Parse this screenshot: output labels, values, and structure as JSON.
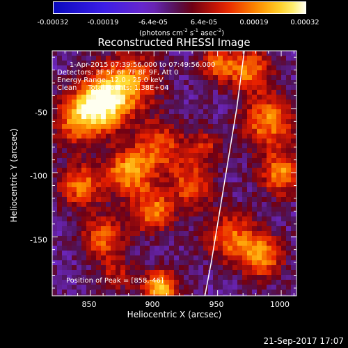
{
  "colorbar": {
    "tick_labels": [
      "-0.00032",
      "-0.00019",
      "-6.4e-05",
      "6.4e-05",
      "0.00019",
      "0.00032"
    ],
    "unit_main": "(photons cm",
    "unit_sup1": "-2",
    "unit_s": " s",
    "unit_sup2": "-1",
    "unit_asec": " asec",
    "unit_sup3": "-2",
    "unit_end": ")",
    "range": [
      -0.00032,
      0.00032
    ]
  },
  "chart_data": {
    "type": "heatmap",
    "title": "Reconstructed RHESSI Image",
    "xlabel": "Heliocentric X (arcsec)",
    "ylabel": "Heliocentric Y (arcsec)",
    "xlim": [
      820,
      1012
    ],
    "ylim": [
      -196,
      -5
    ],
    "x_tick_labels": [
      "850",
      "900",
      "950",
      "1000"
    ],
    "y_tick_labels": [
      "-50",
      "-100",
      "-150"
    ],
    "x_ticks": [
      850,
      900,
      950,
      1000
    ],
    "y_ticks": [
      -50,
      -100,
      -150
    ],
    "limb_curve": [
      [
        940,
        -196
      ],
      [
        945,
        -170
      ],
      [
        950,
        -140
      ],
      [
        955,
        -110
      ],
      [
        960,
        -80
      ],
      [
        965,
        -50
      ],
      [
        969,
        -20
      ],
      [
        971,
        -5
      ]
    ],
    "peak": {
      "x": 858,
      "y": -46
    }
  },
  "info": {
    "time_range": "1-Apr-2015 07:39:56.000 to 07:49:56.000",
    "detectors": "Detectors: 3F 5F 6F 7F 8F 9F, Att 0",
    "energy": "Energy Range: 12.0 - 25.0 keV",
    "clean": "Clean     Total counts: 1.38E+04",
    "peak_label": "Position of Peak = [858,-46]"
  },
  "footer": {
    "date": "21-Sep-2017 17:07"
  },
  "colors": {
    "background": "#000000",
    "text": "#ffffff",
    "limb": "#ffffff"
  }
}
